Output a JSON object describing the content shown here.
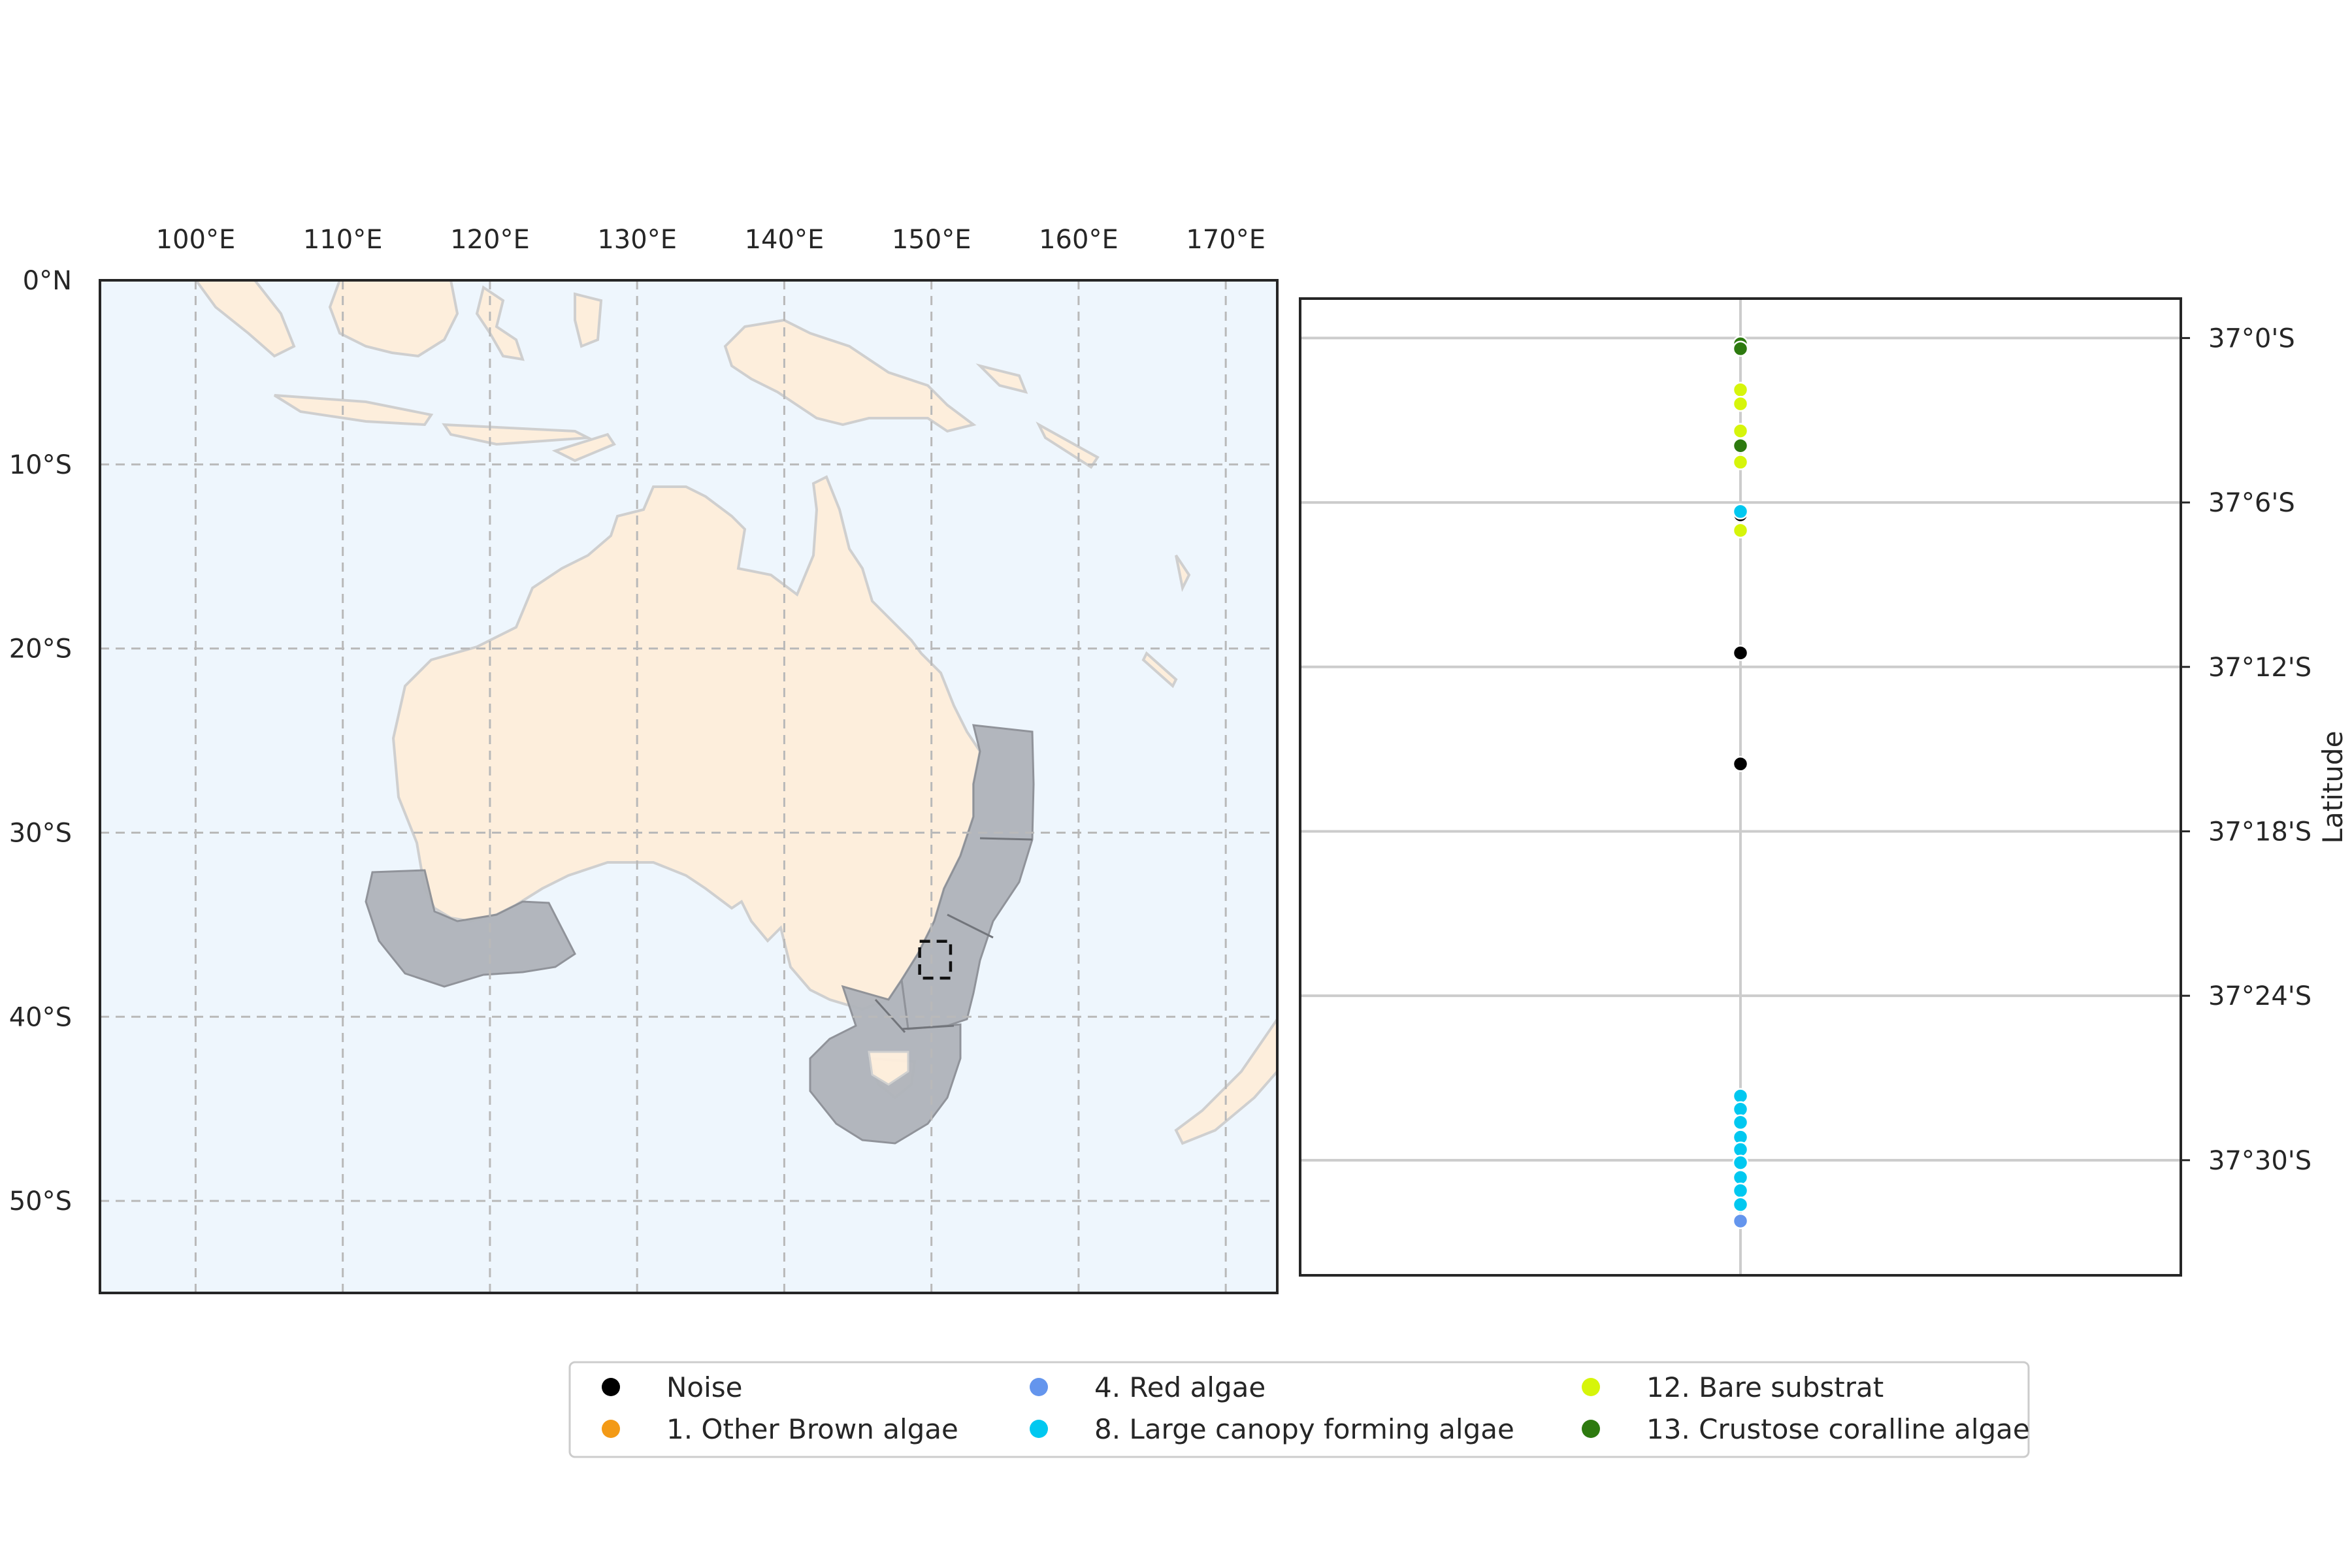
{
  "map": {
    "lon_ticks": [
      "100°E",
      "110°E",
      "120°E",
      "130°E",
      "140°E",
      "150°E",
      "160°E",
      "170°E"
    ],
    "lon_values": [
      100,
      110,
      120,
      130,
      140,
      150,
      160,
      170
    ],
    "lat_ticks": [
      "0°N",
      "10°S",
      "20°S",
      "30°S",
      "40°S",
      "50°S"
    ],
    "lat_values": [
      0,
      -10,
      -20,
      -30,
      -40,
      -50
    ],
    "extent": {
      "lon_min": 93.5,
      "lon_max": 173.5,
      "lat_min": -55,
      "lat_max": 0
    },
    "colors": {
      "ocean": "#eef6fd",
      "land": "#fdeedc",
      "coast": "#cfcfcf",
      "zones": "#b0b4bb",
      "zone_edge": "#8d9096",
      "grid": "#b9b9b9"
    },
    "focus_box": {
      "lon_min": 149.2,
      "lon_max": 151.3,
      "lat_min": -37.9,
      "lat_max": -35.9
    }
  },
  "scatter": {
    "y_ticks": [
      "37°0'S",
      "37°6'S",
      "37°12'S",
      "37°18'S",
      "37°24'S",
      "37°30'S"
    ],
    "y_tick_values": [
      -37.0,
      -37.1,
      -37.2,
      -37.3,
      -37.4,
      -37.5
    ],
    "ylabel": "Latitude",
    "ylim": [
      -37.57,
      -36.976
    ],
    "points": [
      {
        "lat": -37.0035,
        "cls": "13"
      },
      {
        "lat": -37.0065,
        "cls": "13"
      },
      {
        "lat": -37.0315,
        "cls": "12"
      },
      {
        "lat": -37.04,
        "cls": "12"
      },
      {
        "lat": -37.0565,
        "cls": "12"
      },
      {
        "lat": -37.0655,
        "cls": "13"
      },
      {
        "lat": -37.0755,
        "cls": "12"
      },
      {
        "lat": -37.1075,
        "cls": "0"
      },
      {
        "lat": -37.1055,
        "cls": "8"
      },
      {
        "lat": -37.117,
        "cls": "12"
      },
      {
        "lat": -37.1915,
        "cls": "0"
      },
      {
        "lat": -37.259,
        "cls": "0"
      },
      {
        "lat": -37.461,
        "cls": "8"
      },
      {
        "lat": -37.469,
        "cls": "8"
      },
      {
        "lat": -37.477,
        "cls": "8"
      },
      {
        "lat": -37.486,
        "cls": "8"
      },
      {
        "lat": -37.4935,
        "cls": "8"
      },
      {
        "lat": -37.5015,
        "cls": "8"
      },
      {
        "lat": -37.5105,
        "cls": "8"
      },
      {
        "lat": -37.5185,
        "cls": "8"
      },
      {
        "lat": -37.527,
        "cls": "8"
      },
      {
        "lat": -37.537,
        "cls": "4"
      }
    ]
  },
  "legend": {
    "items": [
      {
        "id": "0",
        "label": "Noise",
        "color": "#000000"
      },
      {
        "id": "1",
        "label": "1. Other Brown algae",
        "color": "#f39a16"
      },
      {
        "id": "4",
        "label": "4. Red algae",
        "color": "#6495ed"
      },
      {
        "id": "8",
        "label": "8. Large canopy forming algae",
        "color": "#00c8f0"
      },
      {
        "id": "12",
        "label": "12. Bare substrat",
        "color": "#d6f50a"
      },
      {
        "id": "13",
        "label": "13. Crustose coralline algae",
        "color": "#2d7a0f"
      }
    ]
  }
}
